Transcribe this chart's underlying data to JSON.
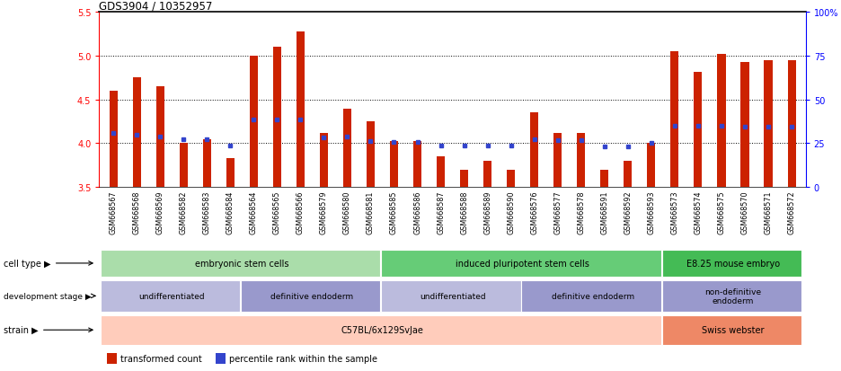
{
  "title": "GDS3904 / 10352957",
  "samples": [
    "GSM668567",
    "GSM668568",
    "GSM668569",
    "GSM668582",
    "GSM668583",
    "GSM668584",
    "GSM668564",
    "GSM668565",
    "GSM668566",
    "GSM668579",
    "GSM668580",
    "GSM668581",
    "GSM668585",
    "GSM668586",
    "GSM668587",
    "GSM668588",
    "GSM668589",
    "GSM668590",
    "GSM668576",
    "GSM668577",
    "GSM668578",
    "GSM668591",
    "GSM668592",
    "GSM668593",
    "GSM668573",
    "GSM668574",
    "GSM668575",
    "GSM668570",
    "GSM668571",
    "GSM668572"
  ],
  "bar_values": [
    4.6,
    4.75,
    4.65,
    4.0,
    4.05,
    3.83,
    5.0,
    5.1,
    5.28,
    4.12,
    4.4,
    4.25,
    4.02,
    4.02,
    3.85,
    3.7,
    3.8,
    3.7,
    4.35,
    4.12,
    4.12,
    3.7,
    3.8,
    4.0,
    5.05,
    4.82,
    5.02,
    4.93,
    4.95,
    4.95
  ],
  "percentile_values": [
    4.12,
    4.1,
    4.08,
    4.05,
    4.05,
    3.97,
    4.27,
    4.27,
    4.27,
    4.07,
    4.08,
    4.02,
    4.01,
    4.01,
    3.97,
    3.97,
    3.97,
    3.97,
    4.05,
    4.04,
    4.04,
    3.96,
    3.96,
    4.0,
    4.2,
    4.2,
    4.2,
    4.19,
    4.19,
    4.19
  ],
  "bar_color": "#cc2200",
  "percentile_color": "#3344cc",
  "ymin": 3.5,
  "ymax": 5.5,
  "yticks": [
    3.5,
    4.0,
    4.5,
    5.0,
    5.5
  ],
  "right_ytick_vals": [
    0,
    25,
    50,
    75,
    100
  ],
  "right_ytick_labels": [
    "0",
    "25",
    "50",
    "75",
    "100%"
  ],
  "gridlines": [
    4.0,
    4.5,
    5.0
  ],
  "cell_type_groups": [
    {
      "label": "embryonic stem cells",
      "start": 0,
      "end": 11,
      "color": "#aaddaa"
    },
    {
      "label": "induced pluripotent stem cells",
      "start": 12,
      "end": 23,
      "color": "#66cc77"
    },
    {
      "label": "E8.25 mouse embryo",
      "start": 24,
      "end": 29,
      "color": "#44bb55"
    }
  ],
  "dev_stage_groups": [
    {
      "label": "undifferentiated",
      "start": 0,
      "end": 5,
      "color": "#bbbbdd"
    },
    {
      "label": "definitive endoderm",
      "start": 6,
      "end": 11,
      "color": "#9999cc"
    },
    {
      "label": "undifferentiated",
      "start": 12,
      "end": 17,
      "color": "#bbbbdd"
    },
    {
      "label": "definitive endoderm",
      "start": 18,
      "end": 23,
      "color": "#9999cc"
    },
    {
      "label": "non-definitive\nendoderm",
      "start": 24,
      "end": 29,
      "color": "#9999cc"
    }
  ],
  "strain_groups": [
    {
      "label": "C57BL/6x129SvJae",
      "start": 0,
      "end": 23,
      "color": "#ffccbb"
    },
    {
      "label": "Swiss webster",
      "start": 24,
      "end": 29,
      "color": "#ee8866"
    }
  ],
  "legend_items": [
    {
      "color": "#cc2200",
      "label": "transformed count"
    },
    {
      "color": "#3344cc",
      "label": "percentile rank within the sample"
    }
  ],
  "xlabels_bg": "#dddddd",
  "fig_bg": "#ffffff"
}
